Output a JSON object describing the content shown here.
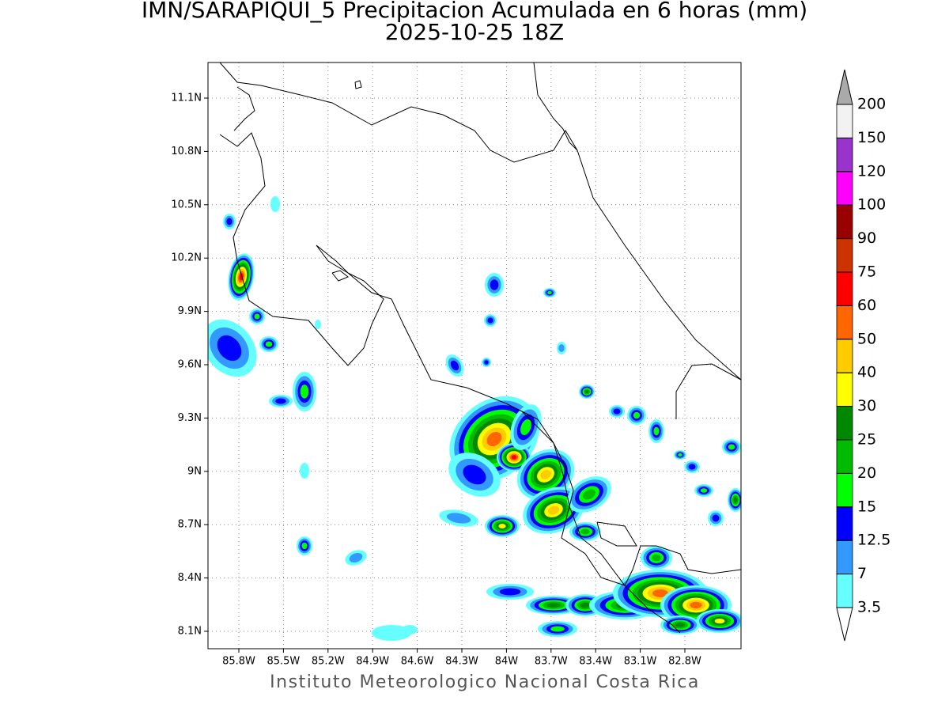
{
  "title": "IMN/SARAPIQUI_5 Precipitacion Acumulada en 6 horas (mm)",
  "subtitle": "2025-10-25 18Z",
  "map": {
    "lat_labels": [
      "11.1N",
      "10.8N",
      "10.5N",
      "10.2N",
      "9.9N",
      "9.6N",
      "9.3N",
      "9N",
      "8.7N",
      "8.4N",
      "8.1N"
    ],
    "lon_labels": [
      "85.8W",
      "85.5W",
      "85.2W",
      "84.9W",
      "84.6W",
      "84.3W",
      "84W",
      "83.7W",
      "83.4W",
      "83.1W",
      "82.8W"
    ]
  },
  "colorbar": {
    "levels": [
      3.5,
      7,
      12.5,
      15,
      20,
      25,
      30,
      40,
      50,
      60,
      75,
      90,
      100,
      120,
      150,
      200
    ],
    "colors": [
      "#66ffff",
      "#3399ff",
      "#0000ff",
      "#00ff00",
      "#00bb00",
      "#008800",
      "#ffff00",
      "#ffcc00",
      "#ff6600",
      "#ff0000",
      "#cc3300",
      "#990000",
      "#ff00ff",
      "#9933cc",
      "#f2f2f2"
    ],
    "over_color": "#aaaaaa",
    "under_color": "#ffffff"
  },
  "footer": "Instituto Meteorologico Nacional Costa Rica"
}
